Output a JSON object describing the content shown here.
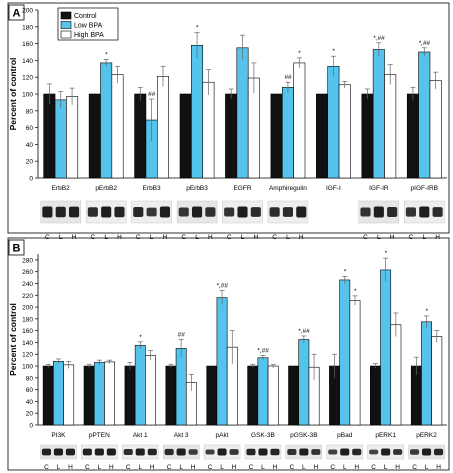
{
  "colors": {
    "control": "#111111",
    "low": "#55c4ec",
    "high": "#ffffff",
    "panel_bg": "#ffffff",
    "frame": "#000000"
  },
  "lane_labels": [
    "C",
    "L",
    "H"
  ],
  "chart_data": [
    {
      "type": "bar",
      "panel_label": "A",
      "ylabel": "Percent of control",
      "ylim": [
        0,
        200
      ],
      "yticks": [
        0,
        20,
        40,
        60,
        80,
        100,
        120,
        140,
        160,
        180,
        200
      ],
      "grid": false,
      "legend": {
        "placement": "top-left"
      },
      "categories": [
        "ErbB2",
        "pErbB2",
        "ErbB3",
        "pErbB3",
        "EGFR",
        "Amphiregulin",
        "IGF-I",
        "IGF-IR",
        "pIGF-IRB"
      ],
      "series": [
        {
          "name": "Control",
          "values": [
            100,
            100,
            100,
            100,
            100,
            100,
            100,
            100,
            100
          ],
          "errors": [
            12,
            0,
            8,
            0,
            6,
            0,
            0,
            6,
            8
          ]
        },
        {
          "name": "Low BPA",
          "values": [
            93,
            137,
            69,
            158,
            155,
            108,
            133,
            153,
            150
          ],
          "errors": [
            10,
            4,
            25,
            15,
            15,
            6,
            12,
            8,
            5
          ]
        },
        {
          "name": "High BPA",
          "values": [
            97,
            123,
            121,
            114,
            119,
            137,
            111,
            123,
            116
          ],
          "errors": [
            10,
            10,
            12,
            15,
            18,
            6,
            4,
            12,
            10
          ]
        }
      ],
      "annotations": [
        {
          "category": "pErbB2",
          "series": "Low BPA",
          "text": "*"
        },
        {
          "category": "ErbB3",
          "series": "Low BPA",
          "text": "##"
        },
        {
          "category": "pErbB3",
          "series": "Low BPA",
          "text": "*"
        },
        {
          "category": "Amphiregulin",
          "series": "Low BPA",
          "text": "##"
        },
        {
          "category": "Amphiregulin",
          "series": "High BPA",
          "text": "*"
        },
        {
          "category": "IGF-I",
          "series": "Low BPA",
          "text": "*"
        },
        {
          "category": "IGF-IR",
          "series": "Low BPA",
          "text": "*,##"
        },
        {
          "category": "pIGF-IRB",
          "series": "Low BPA",
          "text": "*,##"
        }
      ],
      "blot_groups": [
        [
          "ErbB2"
        ],
        [
          "pErbB2"
        ],
        [
          "ErbB3"
        ],
        [
          "pErbB3"
        ],
        [
          "EGFR"
        ],
        [
          "Amphiregulin"
        ],
        [
          "IGF-IR"
        ],
        [
          "pIGF-IRB"
        ]
      ]
    },
    {
      "type": "bar",
      "panel_label": "B",
      "ylabel": "Percent of control",
      "ylim": [
        0,
        290
      ],
      "yticks": [
        0,
        20,
        40,
        60,
        80,
        100,
        120,
        140,
        160,
        180,
        200,
        220,
        240,
        260,
        280
      ],
      "grid": false,
      "categories": [
        "PI3K",
        "pPTEN",
        "Akt 1",
        "Akt 3",
        "pAkt",
        "GSK-3B",
        "pGSK-3B",
        "pBad",
        "pERK1",
        "pERK2"
      ],
      "series": [
        {
          "name": "Control",
          "values": [
            100,
            100,
            100,
            100,
            100,
            100,
            100,
            100,
            100,
            100
          ],
          "errors": [
            3,
            3,
            6,
            3,
            0,
            3,
            0,
            20,
            4,
            15
          ]
        },
        {
          "name": "Low BPA",
          "values": [
            108,
            106,
            135,
            130,
            216,
            114,
            145,
            246,
            263,
            175
          ],
          "errors": [
            4,
            4,
            6,
            15,
            12,
            4,
            6,
            6,
            20,
            10
          ]
        },
        {
          "name": "High BPA",
          "values": [
            102,
            107,
            118,
            72,
            132,
            100,
            98,
            211,
            170,
            150
          ],
          "errors": [
            6,
            3,
            8,
            14,
            28,
            3,
            22,
            8,
            20,
            10
          ]
        }
      ],
      "annotations": [
        {
          "category": "Akt 1",
          "series": "Low BPA",
          "text": "*"
        },
        {
          "category": "Akt 3",
          "series": "Low BPA",
          "text": "##"
        },
        {
          "category": "pAkt",
          "series": "Low BPA",
          "text": "*,##"
        },
        {
          "category": "GSK-3B",
          "series": "Low BPA",
          "text": "*,##"
        },
        {
          "category": "pGSK-3B",
          "series": "Low BPA",
          "text": "*,##"
        },
        {
          "category": "pBad",
          "series": "Low BPA",
          "text": "*"
        },
        {
          "category": "pBad",
          "series": "High BPA",
          "text": "*"
        },
        {
          "category": "pERK1",
          "series": "Low BPA",
          "text": "*"
        },
        {
          "category": "pERK2",
          "series": "Low BPA",
          "text": "*"
        }
      ],
      "blot_groups": [
        [
          "PI3K"
        ],
        [
          "pPTEN"
        ],
        [
          "Akt 1"
        ],
        [
          "Akt 3"
        ],
        [
          "pAkt"
        ],
        [
          "GSK-3B"
        ],
        [
          "pGSK-3B"
        ],
        [
          "pBad"
        ],
        [
          "pERK1"
        ],
        [
          "pERK2"
        ]
      ]
    }
  ]
}
